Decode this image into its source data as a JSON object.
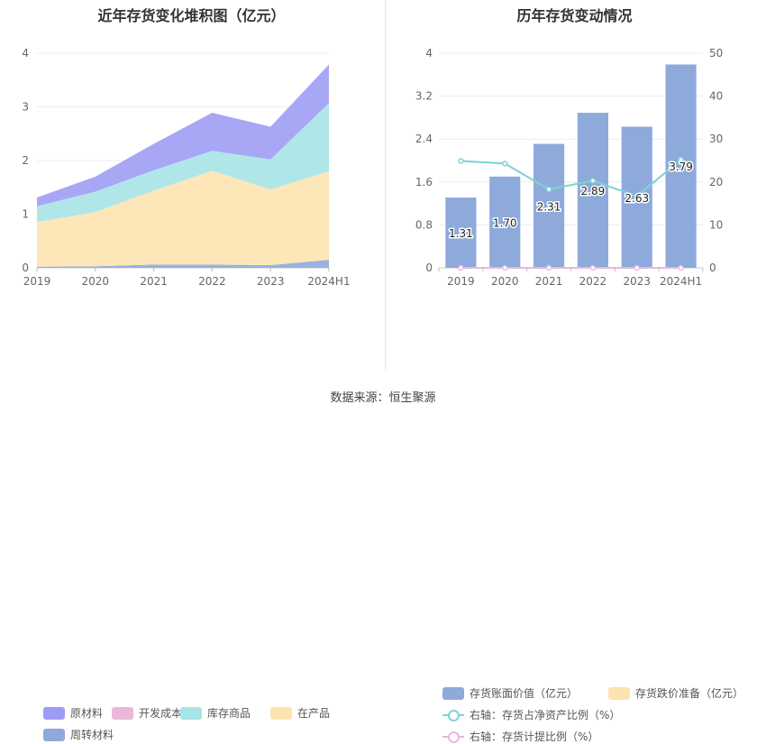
{
  "source_text": "数据来源：恒生聚源",
  "chart_data": [
    {
      "type": "area",
      "stacked": true,
      "title": "近年存货变化堆积图（亿元）",
      "categories": [
        "2019",
        "2020",
        "2021",
        "2022",
        "2023",
        "2024H1"
      ],
      "y_ticks": [
        "0",
        "1",
        "2",
        "3",
        "4"
      ],
      "ylim": [
        0,
        4
      ],
      "grid": true,
      "legend_position": "bottom",
      "series": [
        {
          "name": "周转材料",
          "color": "#8eaadb",
          "values": [
            0.02,
            0.03,
            0.06,
            0.06,
            0.05,
            0.15
          ]
        },
        {
          "name": "在产品",
          "color": "#fde3b0",
          "values": [
            0.83,
            1.01,
            1.38,
            1.75,
            1.41,
            1.65
          ]
        },
        {
          "name": "库存商品",
          "color": "#a8e3e6",
          "values": [
            0.3,
            0.38,
            0.38,
            0.37,
            0.56,
            1.27
          ]
        },
        {
          "name": "开发成本",
          "color": "#e9b8da",
          "values": [
            0,
            0,
            0,
            0,
            0,
            0
          ]
        },
        {
          "name": "原材料",
          "color": "#9d9df5",
          "values": [
            0.16,
            0.28,
            0.49,
            0.71,
            0.61,
            0.72
          ]
        }
      ],
      "legend_order": [
        "原材料",
        "开发成本",
        "库存商品",
        "在产品",
        "周转材料"
      ]
    },
    {
      "type": "bar",
      "title": "历年存货变动情况",
      "categories": [
        "2019",
        "2020",
        "2021",
        "2022",
        "2023",
        "2024H1"
      ],
      "y_left_ticks": [
        "0",
        "0.8",
        "1.6",
        "2.4",
        "3.2",
        "4"
      ],
      "y_right_ticks": [
        "0",
        "10",
        "20",
        "30",
        "40",
        "50"
      ],
      "ylim_left": [
        0,
        4
      ],
      "ylim_right": [
        0,
        50
      ],
      "grid": true,
      "legend_position": "bottom",
      "bars": [
        {
          "name": "存货账面价值（亿元）",
          "color": "#8eaadb",
          "values": [
            1.31,
            1.7,
            2.31,
            2.89,
            2.63,
            3.79
          ],
          "labels": [
            "1.31",
            "1.70",
            "2.31",
            "2.89",
            "2.63",
            "3.79"
          ]
        },
        {
          "name": "存货跌价准备（亿元）",
          "color": "#fde3b0",
          "values": [
            0,
            0,
            0,
            0,
            0,
            0
          ]
        }
      ],
      "lines": [
        {
          "name": "右轴：存货占净资产比例（%）",
          "color": "#7dd3d6",
          "axis": "right",
          "values": [
            24.9,
            24.3,
            18.3,
            20.3,
            16.7,
            25.2
          ]
        },
        {
          "name": "右轴：存货计提比例（%）",
          "color": "#e9b8da",
          "axis": "right",
          "values": [
            0,
            0,
            0,
            0,
            0,
            0
          ]
        }
      ]
    }
  ]
}
